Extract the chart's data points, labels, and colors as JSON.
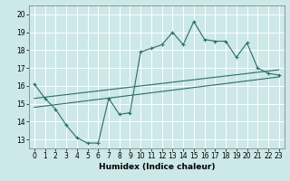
{
  "title": "",
  "xlabel": "Humidex (Indice chaleur)",
  "ylabel": "",
  "xlim": [
    -0.5,
    23.5
  ],
  "ylim": [
    12.5,
    20.5
  ],
  "yticks": [
    13,
    14,
    15,
    16,
    17,
    18,
    19,
    20
  ],
  "xticks": [
    0,
    1,
    2,
    3,
    4,
    5,
    6,
    7,
    8,
    9,
    10,
    11,
    12,
    13,
    14,
    15,
    16,
    17,
    18,
    19,
    20,
    21,
    22,
    23
  ],
  "bg_color": "#cce8e8",
  "line_color": "#2a6e65",
  "grid_color": "#ffffff",
  "line1_x": [
    0,
    1,
    2,
    3,
    4,
    5,
    6,
    7,
    8,
    9,
    10,
    11,
    12,
    13,
    14,
    15,
    16,
    17,
    18,
    19,
    20,
    21,
    22,
    23
  ],
  "line1_y": [
    16.1,
    15.3,
    14.7,
    13.8,
    13.1,
    12.8,
    12.8,
    15.3,
    14.4,
    14.5,
    17.9,
    18.1,
    18.3,
    19.0,
    18.3,
    19.6,
    18.6,
    18.5,
    18.5,
    17.6,
    18.4,
    17.0,
    16.7,
    16.6
  ],
  "line2_x": [
    0,
    23
  ],
  "line2_y": [
    15.3,
    16.9
  ],
  "line3_x": [
    0,
    23
  ],
  "line3_y": [
    14.8,
    16.5
  ],
  "xlabel_fontsize": 6.5,
  "xlabel_fontweight": "bold",
  "tick_fontsize": 5.5
}
